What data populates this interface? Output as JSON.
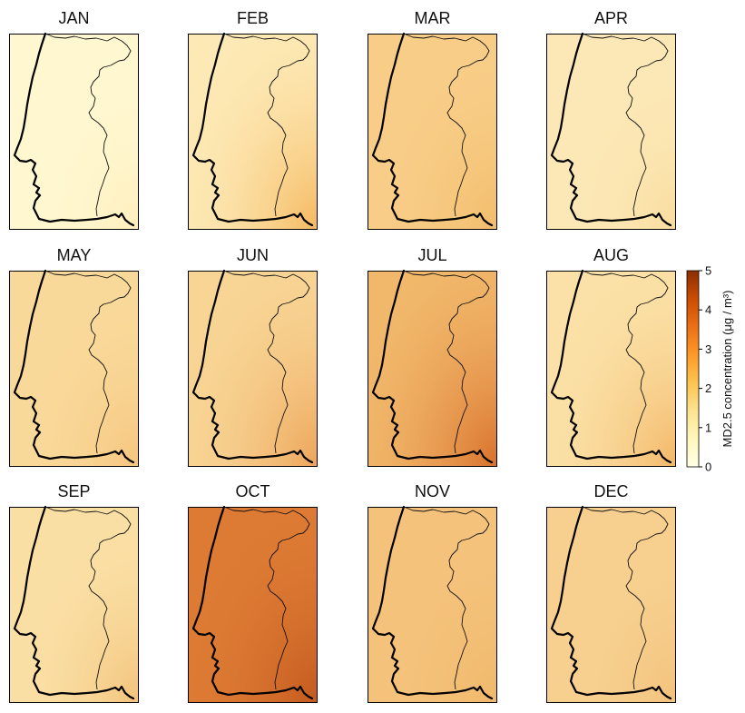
{
  "figure": {
    "panels": [
      {
        "month": "JAN",
        "fill": "#fff7d0",
        "hotspot": "#ffeebb",
        "hot": 0.25
      },
      {
        "month": "FEB",
        "fill": "#fde9b5",
        "hotspot": "#f5b85f",
        "hot": 0.85
      },
      {
        "month": "MAR",
        "fill": "#f8cd87",
        "hotspot": "#f2bc6a",
        "hot": 0.5
      },
      {
        "month": "APR",
        "fill": "#fce8b6",
        "hotspot": "#f9dc9e",
        "hot": 0.4
      },
      {
        "month": "MAY",
        "fill": "#f9d99a",
        "hotspot": "#f6c57e",
        "hot": 0.5
      },
      {
        "month": "JUN",
        "fill": "#f8d595",
        "hotspot": "#eda459",
        "hot": 0.85
      },
      {
        "month": "JUL",
        "fill": "#f1b86b",
        "hotspot": "#d9702b",
        "hot": 0.95
      },
      {
        "month": "AUG",
        "fill": "#fbe1a7",
        "hotspot": "#f3b767",
        "hot": 0.75
      },
      {
        "month": "SEP",
        "fill": "#fadfa4",
        "hotspot": "#f3c27b",
        "hot": 0.5
      },
      {
        "month": "OCT",
        "fill": "#dd7b34",
        "hotspot": "#c45a1f",
        "hot": 0.7
      },
      {
        "month": "NOV",
        "fill": "#f4c27b",
        "hotspot": "#f0b86a",
        "hot": 0.4
      },
      {
        "month": "DEC",
        "fill": "#f7d090",
        "hotspot": "#f3c27b",
        "hot": 0.4
      }
    ]
  },
  "colorbar": {
    "title": "MD2.5 concentration (μg / m³)",
    "min": 0,
    "max": 5,
    "ticks": [
      "0",
      "1",
      "2",
      "3",
      "4",
      "5"
    ],
    "colormap": [
      "#ffffe5",
      "#fff7bc",
      "#fee391",
      "#fec44f",
      "#fe9929",
      "#ec7014",
      "#cc4c02",
      "#8c2d04"
    ]
  }
}
